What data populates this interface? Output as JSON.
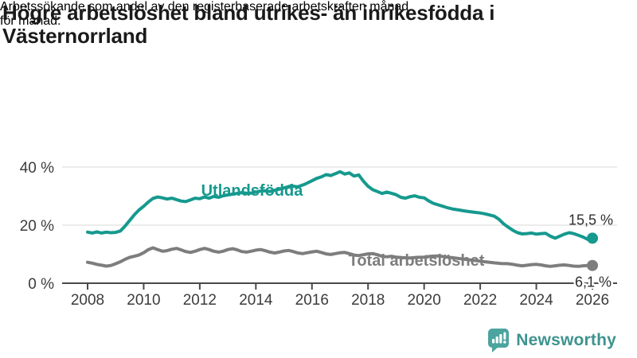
{
  "header": {
    "title": "Högre arbetslöshet bland utrikes- än inrikesfödda i Västernorrland",
    "title_lines": [
      "Högre arbetslöshet bland utrikes- än inrikesfödda i",
      "Västernorrland"
    ],
    "subtitle": "Arbetssökande som andel av den registerbaserade arbetskraften månad för månad.",
    "subtitle_lines": [
      "Arbetssökande som andel av den registerbaserade arbetskraften månad",
      "för månad."
    ]
  },
  "branding": {
    "logo_text": "Newsworthy",
    "logo_icon": "bar-chart-speech-bubble-icon",
    "icon_color": "#4ba49e",
    "text_color": "#3e938e"
  },
  "chart_data": {
    "type": "line",
    "title": "Högre arbetslöshet bland utrikes- än inrikesfödda i Västernorrland",
    "subtitle": "Arbetssökande som andel av den registerbaserade arbetskraften månad för månad.",
    "grid": "horizontal",
    "legend_position": "inline-labels",
    "colors": {
      "background": "#ffffff",
      "grid": "#d9d9d9",
      "axis": "#4a4a4a",
      "tick_text": "#3c3c3c",
      "value_label": "#2e2e2e"
    },
    "x_axis": {
      "range": [
        2008,
        2026
      ],
      "ticks": [
        2008,
        2010,
        2012,
        2014,
        2016,
        2018,
        2020,
        2022,
        2024,
        2026
      ]
    },
    "y_axis": {
      "range": [
        0,
        45
      ],
      "ticks": [
        {
          "value": 0,
          "label": "0 %"
        },
        {
          "value": 20,
          "label": "20 %"
        },
        {
          "value": 40,
          "label": "40 %"
        }
      ]
    },
    "series": [
      {
        "name": "Utlandsfödda",
        "color": "#16998e",
        "end_value": 15.5,
        "end_label": "15,5 %",
        "label_pos": [
          2012.05,
          30.1
        ],
        "points": [
          [
            2008.0,
            17.6
          ],
          [
            2008.17,
            17.3
          ],
          [
            2008.33,
            17.7
          ],
          [
            2008.5,
            17.3
          ],
          [
            2008.67,
            17.6
          ],
          [
            2008.83,
            17.4
          ],
          [
            2009.0,
            17.5
          ],
          [
            2009.17,
            18.0
          ],
          [
            2009.33,
            19.6
          ],
          [
            2009.5,
            21.6
          ],
          [
            2009.67,
            23.6
          ],
          [
            2009.83,
            25.2
          ],
          [
            2010.0,
            26.5
          ],
          [
            2010.17,
            28.0
          ],
          [
            2010.33,
            29.2
          ],
          [
            2010.5,
            29.7
          ],
          [
            2010.67,
            29.4
          ],
          [
            2010.83,
            29.0
          ],
          [
            2011.0,
            29.3
          ],
          [
            2011.17,
            28.8
          ],
          [
            2011.33,
            28.3
          ],
          [
            2011.5,
            28.1
          ],
          [
            2011.67,
            28.7
          ],
          [
            2011.83,
            29.3
          ],
          [
            2012.0,
            29.1
          ],
          [
            2012.17,
            29.7
          ],
          [
            2012.33,
            29.3
          ],
          [
            2012.5,
            29.9
          ],
          [
            2012.67,
            29.6
          ],
          [
            2012.83,
            30.1
          ],
          [
            2013.0,
            30.4
          ],
          [
            2013.25,
            30.8
          ],
          [
            2013.5,
            31.2
          ],
          [
            2013.75,
            30.9
          ],
          [
            2014.0,
            31.4
          ],
          [
            2014.25,
            31.9
          ],
          [
            2014.5,
            31.6
          ],
          [
            2014.75,
            32.2
          ],
          [
            2015.0,
            32.8
          ],
          [
            2015.25,
            33.5
          ],
          [
            2015.5,
            33.2
          ],
          [
            2015.75,
            34.1
          ],
          [
            2016.0,
            35.3
          ],
          [
            2016.17,
            36.1
          ],
          [
            2016.33,
            36.6
          ],
          [
            2016.5,
            37.4
          ],
          [
            2016.67,
            37.1
          ],
          [
            2016.83,
            37.7
          ],
          [
            2017.0,
            38.4
          ],
          [
            2017.17,
            37.6
          ],
          [
            2017.33,
            38.0
          ],
          [
            2017.5,
            36.9
          ],
          [
            2017.67,
            37.3
          ],
          [
            2017.83,
            35.2
          ],
          [
            2018.0,
            33.4
          ],
          [
            2018.17,
            32.2
          ],
          [
            2018.33,
            31.6
          ],
          [
            2018.5,
            30.9
          ],
          [
            2018.67,
            31.4
          ],
          [
            2018.83,
            31.0
          ],
          [
            2019.0,
            30.5
          ],
          [
            2019.17,
            29.6
          ],
          [
            2019.33,
            29.3
          ],
          [
            2019.5,
            29.8
          ],
          [
            2019.67,
            30.1
          ],
          [
            2019.83,
            29.6
          ],
          [
            2020.0,
            29.4
          ],
          [
            2020.17,
            28.3
          ],
          [
            2020.33,
            27.5
          ],
          [
            2020.5,
            27.0
          ],
          [
            2020.67,
            26.5
          ],
          [
            2020.83,
            26.0
          ],
          [
            2021.0,
            25.6
          ],
          [
            2021.25,
            25.2
          ],
          [
            2021.5,
            24.8
          ],
          [
            2021.75,
            24.5
          ],
          [
            2022.0,
            24.2
          ],
          [
            2022.17,
            23.9
          ],
          [
            2022.33,
            23.5
          ],
          [
            2022.5,
            23.1
          ],
          [
            2022.67,
            22.0
          ],
          [
            2022.83,
            20.5
          ],
          [
            2023.0,
            19.3
          ],
          [
            2023.17,
            18.2
          ],
          [
            2023.33,
            17.4
          ],
          [
            2023.5,
            17.0
          ],
          [
            2023.67,
            17.1
          ],
          [
            2023.83,
            17.3
          ],
          [
            2024.0,
            16.9
          ],
          [
            2024.17,
            17.1
          ],
          [
            2024.33,
            17.2
          ],
          [
            2024.5,
            16.2
          ],
          [
            2024.67,
            15.5
          ],
          [
            2024.83,
            16.2
          ],
          [
            2025.0,
            16.9
          ],
          [
            2025.17,
            17.4
          ],
          [
            2025.33,
            17.1
          ],
          [
            2025.5,
            16.5
          ],
          [
            2025.67,
            15.9
          ],
          [
            2025.83,
            15.1
          ],
          [
            2026.0,
            15.5
          ]
        ]
      },
      {
        "name": "Total arbetslöshet",
        "color": "#7d7d7d",
        "end_value": 6.1,
        "end_label": "6,1 %",
        "label_pos": [
          2017.3,
          6.0
        ],
        "points": [
          [
            2008.0,
            7.2
          ],
          [
            2008.17,
            6.9
          ],
          [
            2008.33,
            6.5
          ],
          [
            2008.5,
            6.2
          ],
          [
            2008.67,
            5.9
          ],
          [
            2008.83,
            6.1
          ],
          [
            2009.0,
            6.7
          ],
          [
            2009.17,
            7.4
          ],
          [
            2009.33,
            8.2
          ],
          [
            2009.5,
            8.9
          ],
          [
            2009.67,
            9.3
          ],
          [
            2009.83,
            9.7
          ],
          [
            2010.0,
            10.5
          ],
          [
            2010.17,
            11.6
          ],
          [
            2010.33,
            12.2
          ],
          [
            2010.5,
            11.6
          ],
          [
            2010.67,
            11.0
          ],
          [
            2010.83,
            11.2
          ],
          [
            2011.0,
            11.7
          ],
          [
            2011.17,
            12.0
          ],
          [
            2011.33,
            11.5
          ],
          [
            2011.5,
            10.9
          ],
          [
            2011.67,
            10.6
          ],
          [
            2011.83,
            11.0
          ],
          [
            2012.0,
            11.6
          ],
          [
            2012.17,
            12.0
          ],
          [
            2012.33,
            11.6
          ],
          [
            2012.5,
            11.0
          ],
          [
            2012.67,
            10.7
          ],
          [
            2012.83,
            11.0
          ],
          [
            2013.0,
            11.6
          ],
          [
            2013.17,
            11.9
          ],
          [
            2013.33,
            11.5
          ],
          [
            2013.5,
            10.9
          ],
          [
            2013.67,
            10.7
          ],
          [
            2013.83,
            11.0
          ],
          [
            2014.0,
            11.4
          ],
          [
            2014.17,
            11.6
          ],
          [
            2014.33,
            11.2
          ],
          [
            2014.5,
            10.7
          ],
          [
            2014.67,
            10.4
          ],
          [
            2014.83,
            10.7
          ],
          [
            2015.0,
            11.1
          ],
          [
            2015.17,
            11.3
          ],
          [
            2015.33,
            10.9
          ],
          [
            2015.5,
            10.4
          ],
          [
            2015.67,
            10.2
          ],
          [
            2015.83,
            10.5
          ],
          [
            2016.0,
            10.8
          ],
          [
            2016.17,
            11.0
          ],
          [
            2016.33,
            10.6
          ],
          [
            2016.5,
            10.1
          ],
          [
            2016.67,
            9.9
          ],
          [
            2016.83,
            10.2
          ],
          [
            2017.0,
            10.5
          ],
          [
            2017.17,
            10.6
          ],
          [
            2017.33,
            10.2
          ],
          [
            2017.5,
            9.7
          ],
          [
            2017.67,
            9.5
          ],
          [
            2017.83,
            9.8
          ],
          [
            2018.0,
            10.1
          ],
          [
            2018.17,
            10.2
          ],
          [
            2018.33,
            9.8
          ],
          [
            2018.5,
            9.3
          ],
          [
            2018.67,
            9.1
          ],
          [
            2018.83,
            9.3
          ],
          [
            2019.0,
            9.0
          ],
          [
            2019.25,
            8.8
          ],
          [
            2019.5,
            8.7
          ],
          [
            2019.75,
            8.9
          ],
          [
            2020.0,
            9.0
          ],
          [
            2020.25,
            9.3
          ],
          [
            2020.5,
            9.4
          ],
          [
            2020.75,
            9.1
          ],
          [
            2021.0,
            8.8
          ],
          [
            2021.25,
            8.5
          ],
          [
            2021.5,
            8.2
          ],
          [
            2021.75,
            7.9
          ],
          [
            2022.0,
            7.6
          ],
          [
            2022.25,
            7.3
          ],
          [
            2022.5,
            7.0
          ],
          [
            2022.75,
            6.8
          ],
          [
            2023.0,
            6.7
          ],
          [
            2023.17,
            6.5
          ],
          [
            2023.33,
            6.2
          ],
          [
            2023.5,
            6.0
          ],
          [
            2023.67,
            6.2
          ],
          [
            2023.83,
            6.4
          ],
          [
            2024.0,
            6.5
          ],
          [
            2024.17,
            6.3
          ],
          [
            2024.33,
            6.0
          ],
          [
            2024.5,
            5.8
          ],
          [
            2024.67,
            6.0
          ],
          [
            2024.83,
            6.2
          ],
          [
            2025.0,
            6.3
          ],
          [
            2025.17,
            6.1
          ],
          [
            2025.33,
            5.9
          ],
          [
            2025.5,
            5.8
          ],
          [
            2025.67,
            6.0
          ],
          [
            2025.83,
            6.1
          ],
          [
            2026.0,
            6.1
          ]
        ]
      }
    ]
  }
}
